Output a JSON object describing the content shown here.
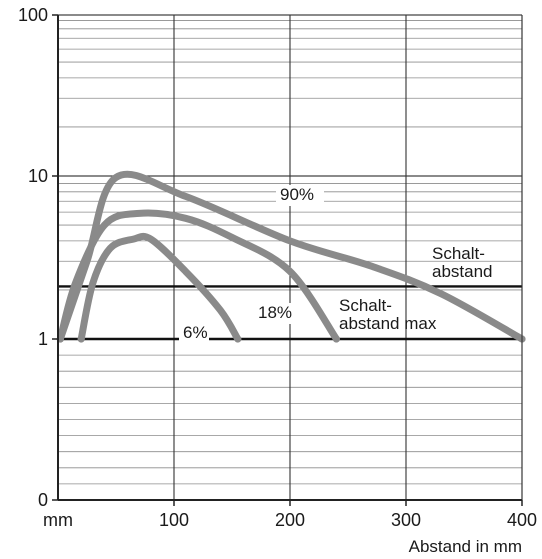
{
  "chart_data": {
    "type": "line",
    "xlabel": "Abstand in mm",
    "x_unit_label": "mm",
    "x_ticks": [
      100,
      200,
      300,
      400
    ],
    "x_tick_labels": [
      "100",
      "200",
      "300",
      "400"
    ],
    "xlim": [
      0,
      400
    ],
    "y_scale": "log",
    "y_tick_labels": [
      "100",
      "10",
      "1",
      "0"
    ],
    "series": [
      {
        "name": "90%",
        "points": [
          [
            2,
            1.0
          ],
          [
            25,
            3.0
          ],
          [
            50,
            9.8
          ],
          [
            110,
            7.5
          ],
          [
            200,
            4.0
          ],
          [
            270,
            2.8
          ],
          [
            330,
            1.9
          ],
          [
            400,
            1.0
          ]
        ]
      },
      {
        "name": "18%",
        "points": [
          [
            2,
            1.0
          ],
          [
            15,
            2.2
          ],
          [
            40,
            5.0
          ],
          [
            70,
            5.9
          ],
          [
            110,
            5.5
          ],
          [
            150,
            4.2
          ],
          [
            200,
            2.6
          ],
          [
            240,
            1.0
          ]
        ]
      },
      {
        "name": "6%",
        "points": [
          [
            20,
            1.0
          ],
          [
            30,
            2.2
          ],
          [
            45,
            3.6
          ],
          [
            65,
            4.1
          ],
          [
            80,
            4.1
          ],
          [
            110,
            2.6
          ],
          [
            140,
            1.5
          ],
          [
            155,
            1.0
          ]
        ]
      }
    ],
    "reference_lines": [
      {
        "label": "Schalt-\nabstand",
        "label_lines": [
          "Schalt-",
          "abstand"
        ],
        "y": 2.1
      },
      {
        "label": "Schalt-\nabstand max",
        "label_lines": [
          "Schalt-",
          "abstand max"
        ],
        "y": 1.0
      }
    ],
    "grid": true,
    "colors": {
      "series": "#8a8a8a",
      "axis": "#222222",
      "grid": "#8c8c8c"
    }
  }
}
